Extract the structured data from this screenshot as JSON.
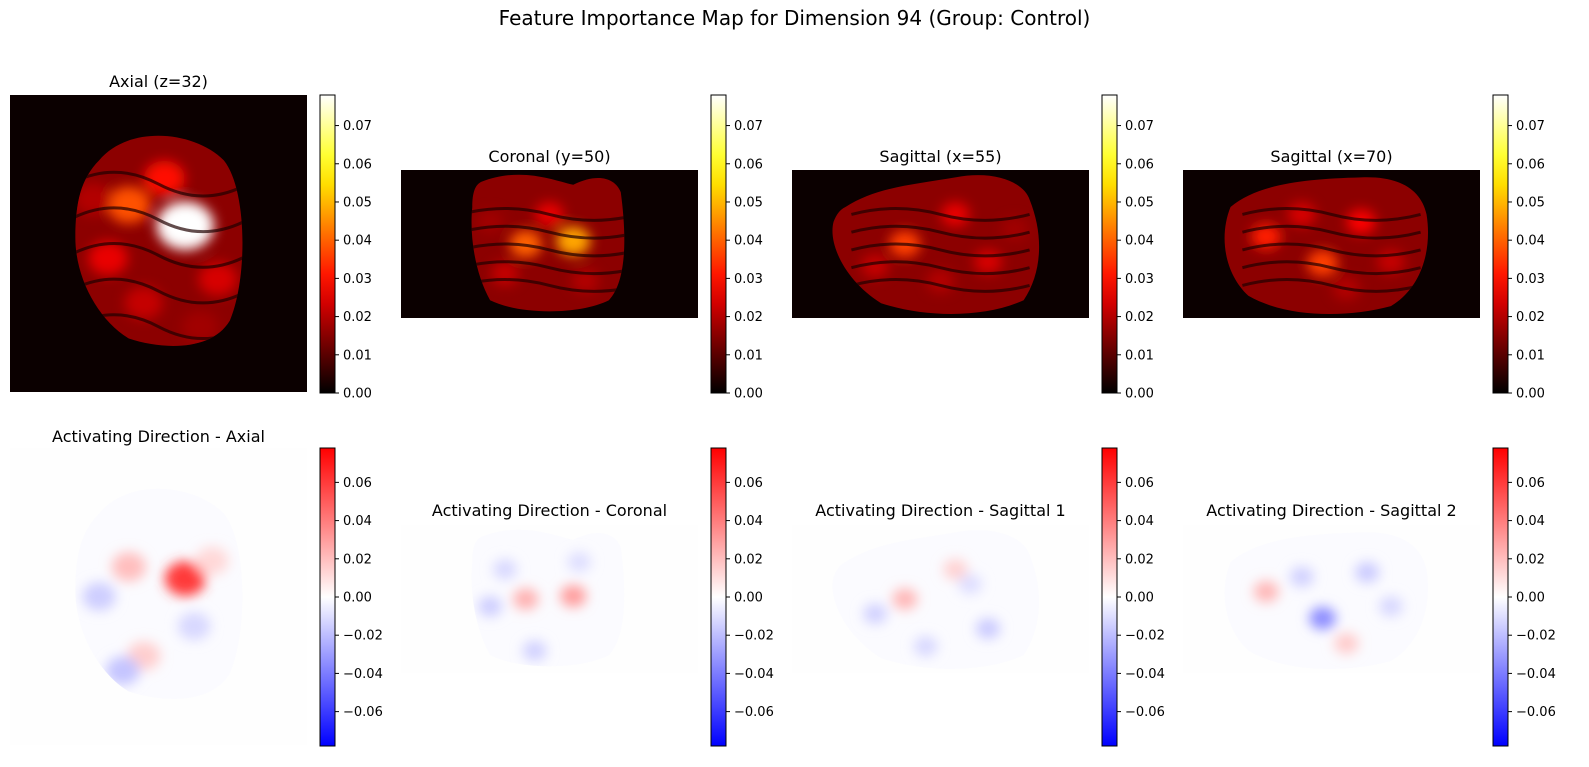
{
  "figure": {
    "title": "Feature Importance Map for Dimension 94 (Group: Control)"
  },
  "chart_data": [
    {
      "type": "heatmap",
      "title": "Axial (z=32)",
      "colormap": "hot",
      "colorbar": {
        "range": [
          0,
          0.078
        ],
        "ticks": [
          "0.00",
          "0.01",
          "0.02",
          "0.03",
          "0.04",
          "0.05",
          "0.06",
          "0.07"
        ]
      },
      "peaks": [
        {
          "x": 0.59,
          "y": 0.44,
          "v": 0.078
        },
        {
          "x": 0.4,
          "y": 0.37,
          "v": 0.038
        },
        {
          "x": 0.52,
          "y": 0.28,
          "v": 0.03
        },
        {
          "x": 0.33,
          "y": 0.55,
          "v": 0.026
        },
        {
          "x": 0.7,
          "y": 0.62,
          "v": 0.024
        },
        {
          "x": 0.45,
          "y": 0.7,
          "v": 0.022
        },
        {
          "x": 0.28,
          "y": 0.35,
          "v": 0.02
        },
        {
          "x": 0.64,
          "y": 0.78,
          "v": 0.018
        }
      ]
    },
    {
      "type": "heatmap",
      "title": "Coronal (y=50)",
      "colormap": "hot",
      "colorbar": {
        "range": [
          0,
          0.078
        ],
        "ticks": [
          "0.00",
          "0.01",
          "0.02",
          "0.03",
          "0.04",
          "0.05",
          "0.06",
          "0.07"
        ]
      },
      "peaks": [
        {
          "x": 0.58,
          "y": 0.48,
          "v": 0.048
        },
        {
          "x": 0.42,
          "y": 0.5,
          "v": 0.04
        },
        {
          "x": 0.5,
          "y": 0.3,
          "v": 0.026
        },
        {
          "x": 0.35,
          "y": 0.7,
          "v": 0.022
        },
        {
          "x": 0.62,
          "y": 0.75,
          "v": 0.02
        },
        {
          "x": 0.3,
          "y": 0.35,
          "v": 0.018
        }
      ]
    },
    {
      "type": "heatmap",
      "title": "Sagittal (x=55)",
      "colormap": "hot",
      "colorbar": {
        "range": [
          0,
          0.078
        ],
        "ticks": [
          "0.00",
          "0.01",
          "0.02",
          "0.03",
          "0.04",
          "0.05",
          "0.06",
          "0.07"
        ]
      },
      "peaks": [
        {
          "x": 0.38,
          "y": 0.5,
          "v": 0.036
        },
        {
          "x": 0.55,
          "y": 0.3,
          "v": 0.026
        },
        {
          "x": 0.66,
          "y": 0.62,
          "v": 0.024
        },
        {
          "x": 0.28,
          "y": 0.65,
          "v": 0.022
        },
        {
          "x": 0.5,
          "y": 0.75,
          "v": 0.02
        },
        {
          "x": 0.75,
          "y": 0.4,
          "v": 0.018
        }
      ]
    },
    {
      "type": "heatmap",
      "title": "Sagittal (x=70)",
      "colormap": "hot",
      "colorbar": {
        "range": [
          0,
          0.078
        ],
        "ticks": [
          "0.00",
          "0.01",
          "0.02",
          "0.03",
          "0.04",
          "0.05",
          "0.06",
          "0.07"
        ]
      },
      "peaks": [
        {
          "x": 0.47,
          "y": 0.63,
          "v": 0.036
        },
        {
          "x": 0.28,
          "y": 0.45,
          "v": 0.032
        },
        {
          "x": 0.6,
          "y": 0.35,
          "v": 0.028
        },
        {
          "x": 0.7,
          "y": 0.62,
          "v": 0.022
        },
        {
          "x": 0.4,
          "y": 0.3,
          "v": 0.024
        },
        {
          "x": 0.55,
          "y": 0.8,
          "v": 0.02
        }
      ]
    },
    {
      "type": "heatmap",
      "title": "Activating Direction - Axial",
      "colormap": "bwr",
      "colorbar": {
        "range": [
          -0.078,
          0.078
        ],
        "ticks": [
          "−0.06",
          "−0.04",
          "−0.02",
          "0.00",
          "0.02",
          "0.04",
          "0.06"
        ]
      },
      "peaks": [
        {
          "x": 0.59,
          "y": 0.44,
          "v": 0.06
        },
        {
          "x": 0.4,
          "y": 0.4,
          "v": 0.02
        },
        {
          "x": 0.3,
          "y": 0.5,
          "v": -0.015
        },
        {
          "x": 0.62,
          "y": 0.6,
          "v": -0.012
        },
        {
          "x": 0.45,
          "y": 0.7,
          "v": 0.015
        },
        {
          "x": 0.38,
          "y": 0.75,
          "v": -0.018
        },
        {
          "x": 0.68,
          "y": 0.38,
          "v": 0.012
        }
      ]
    },
    {
      "type": "heatmap",
      "title": "Activating Direction - Coronal",
      "colormap": "bwr",
      "colorbar": {
        "range": [
          -0.078,
          0.078
        ],
        "ticks": [
          "−0.06",
          "−0.04",
          "−0.02",
          "0.00",
          "0.02",
          "0.04",
          "0.06"
        ]
      },
      "peaks": [
        {
          "x": 0.58,
          "y": 0.48,
          "v": 0.03
        },
        {
          "x": 0.42,
          "y": 0.5,
          "v": 0.024
        },
        {
          "x": 0.3,
          "y": 0.55,
          "v": -0.015
        },
        {
          "x": 0.45,
          "y": 0.85,
          "v": -0.014
        },
        {
          "x": 0.6,
          "y": 0.25,
          "v": -0.01
        },
        {
          "x": 0.35,
          "y": 0.3,
          "v": -0.012
        }
      ]
    },
    {
      "type": "heatmap",
      "title": "Activating Direction - Sagittal 1",
      "colormap": "bwr",
      "colorbar": {
        "range": [
          -0.078,
          0.078
        ],
        "ticks": [
          "−0.06",
          "−0.04",
          "−0.02",
          "0.00",
          "0.02",
          "0.04",
          "0.06"
        ]
      },
      "peaks": [
        {
          "x": 0.38,
          "y": 0.5,
          "v": 0.022
        },
        {
          "x": 0.66,
          "y": 0.7,
          "v": -0.016
        },
        {
          "x": 0.28,
          "y": 0.6,
          "v": -0.014
        },
        {
          "x": 0.55,
          "y": 0.3,
          "v": 0.014
        },
        {
          "x": 0.6,
          "y": 0.4,
          "v": -0.01
        },
        {
          "x": 0.45,
          "y": 0.82,
          "v": -0.012
        }
      ]
    },
    {
      "type": "heatmap",
      "title": "Activating Direction - Sagittal 2",
      "colormap": "bwr",
      "colorbar": {
        "range": [
          -0.078,
          0.078
        ],
        "ticks": [
          "−0.06",
          "−0.04",
          "−0.02",
          "0.00",
          "0.02",
          "0.04",
          "0.06"
        ]
      },
      "peaks": [
        {
          "x": 0.47,
          "y": 0.63,
          "v": -0.035
        },
        {
          "x": 0.28,
          "y": 0.45,
          "v": 0.022
        },
        {
          "x": 0.62,
          "y": 0.32,
          "v": -0.016
        },
        {
          "x": 0.7,
          "y": 0.55,
          "v": -0.012
        },
        {
          "x": 0.4,
          "y": 0.35,
          "v": -0.014
        },
        {
          "x": 0.55,
          "y": 0.8,
          "v": 0.016
        }
      ]
    }
  ]
}
